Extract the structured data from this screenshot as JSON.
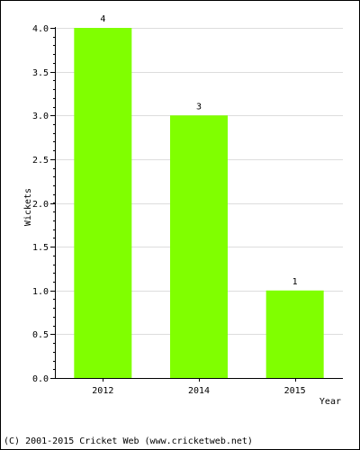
{
  "chart_data": {
    "type": "bar",
    "categories": [
      "2012",
      "2014",
      "2015"
    ],
    "values": [
      4,
      3,
      1
    ],
    "data_labels": [
      "4",
      "3",
      "1"
    ],
    "title": "",
    "xlabel": "Year",
    "ylabel": "Wickets",
    "ylim": [
      0,
      4
    ],
    "yticks": [
      "0.0",
      "0.5",
      "1.0",
      "1.5",
      "2.0",
      "2.5",
      "3.0",
      "3.5",
      "4.0"
    ],
    "grid": true,
    "bar_color": "#80ff00",
    "grid_color": "#dddddd"
  },
  "footer": {
    "copyright": "(C) 2001-2015 Cricket Web (www.cricketweb.net)"
  }
}
